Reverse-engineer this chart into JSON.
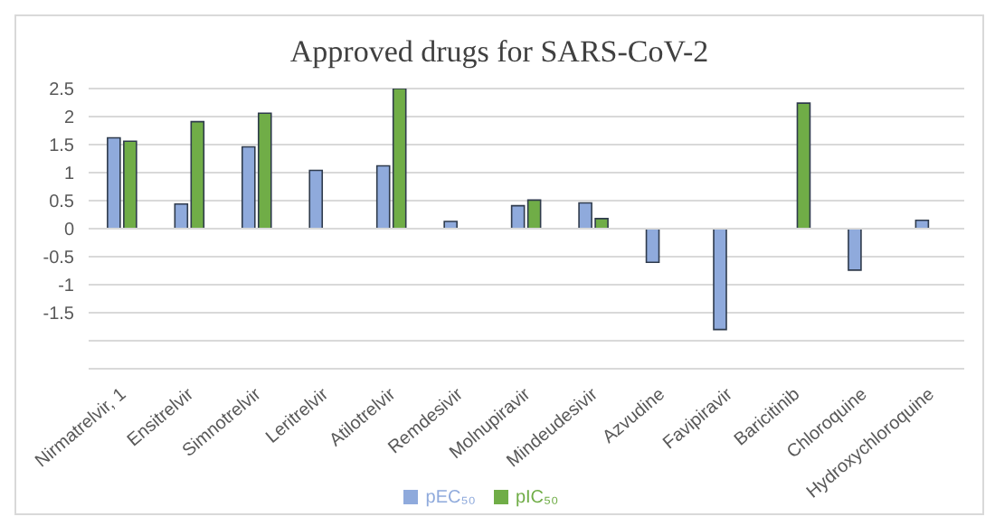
{
  "chart_data": {
    "type": "bar",
    "title": "Approved drugs for SARS-CoV-2",
    "categories": [
      "Nirmatrelvir, 1",
      "Ensitrelvir",
      "Simnotrelvir",
      "Leritrelvir",
      "Atilotrelvir",
      "Remdesivir",
      "Molnupiravir",
      "Mindeudesivir",
      "Azvudine",
      "Favipiravir",
      "Baricitinib",
      "Chloroquine",
      "Hydroxychloroquine"
    ],
    "series": [
      {
        "name": "pEC₅₀",
        "color": "#8faadc",
        "values": [
          1.62,
          0.44,
          1.46,
          1.04,
          1.12,
          0.13,
          0.41,
          0.46,
          -0.6,
          -1.8,
          null,
          -0.74,
          0.15
        ]
      },
      {
        "name": "pIC₅₀",
        "color": "#70ad47",
        "values": [
          1.56,
          1.91,
          2.06,
          null,
          2.5,
          null,
          0.51,
          0.18,
          null,
          null,
          2.24,
          null,
          null
        ]
      }
    ],
    "ylim": [
      -2.5,
      2.5
    ],
    "yticks": [
      {
        "value": -2.5,
        "label": null
      },
      {
        "value": -2,
        "label": null
      },
      -1.5,
      -1,
      -0.5,
      0,
      0.5,
      1,
      1.5,
      2,
      2.5
    ],
    "grid": "y",
    "legend": "bottom"
  }
}
